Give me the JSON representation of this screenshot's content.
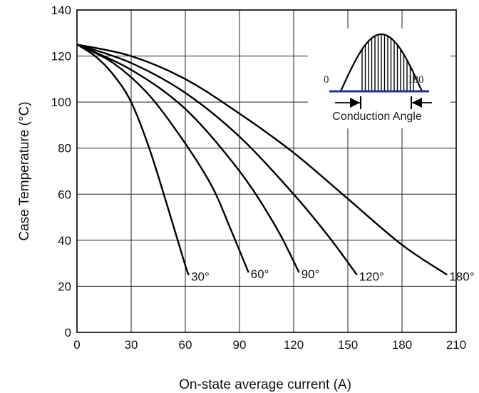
{
  "chart_data": {
    "type": "line",
    "xlabel": "On-state average current (A)",
    "ylabel": "Case  Temperature (°C)",
    "xlim": [
      0,
      210
    ],
    "ylim": [
      0,
      140
    ],
    "x_ticks": [
      "0",
      "30",
      "60",
      "90",
      "120",
      "150",
      "180",
      "210"
    ],
    "y_ticks": [
      "0",
      "20",
      "40",
      "60",
      "80",
      "100",
      "120",
      "140"
    ],
    "grid": true,
    "series": [
      {
        "name": "30°",
        "x": [
          0,
          10,
          20,
          30,
          40,
          50,
          60,
          62
        ],
        "y": [
          125,
          120,
          112,
          100,
          80,
          55,
          29,
          25
        ]
      },
      {
        "name": "60°",
        "x": [
          0,
          20,
          40,
          60,
          75,
          85,
          95
        ],
        "y": [
          125,
          117,
          103,
          82,
          63,
          45,
          26
        ]
      },
      {
        "name": "90°",
        "x": [
          0,
          30,
          60,
          90,
          110,
          123
        ],
        "y": [
          125,
          114,
          97,
          70,
          46,
          26
        ]
      },
      {
        "name": "120°",
        "x": [
          0,
          30,
          60,
          90,
          120,
          140,
          155
        ],
        "y": [
          125,
          117,
          104,
          85,
          60,
          41,
          25
        ]
      },
      {
        "name": "180°",
        "x": [
          0,
          30,
          60,
          90,
          120,
          150,
          180,
          205
        ],
        "y": [
          125,
          120,
          110,
          95,
          78,
          58,
          38,
          25
        ]
      }
    ],
    "inset": {
      "left_label": "0",
      "right_label": "180",
      "caption": "Conduction Angle"
    },
    "colors": {
      "curves": "#000000",
      "grid": "#222222",
      "baseline": "#1f2f9c"
    }
  }
}
